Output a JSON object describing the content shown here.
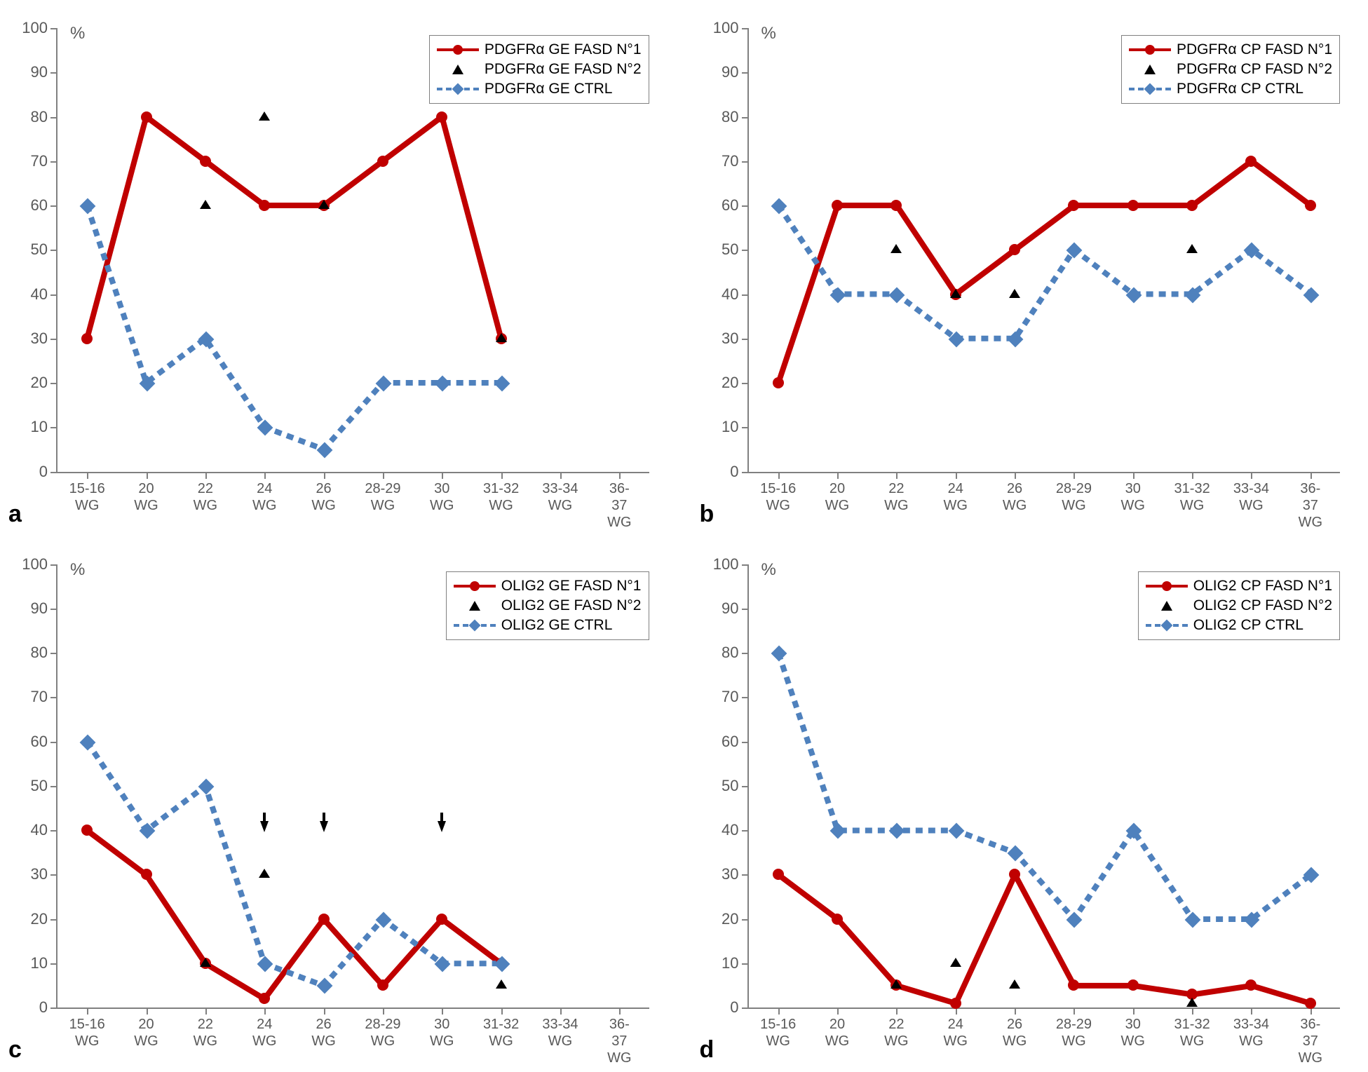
{
  "categories": [
    "15-16\nWG",
    "20\nWG",
    "22\nWG",
    "24\nWG",
    "26\nWG",
    "28-29\nWG",
    "30\nWG",
    "31-32\nWG",
    "33-34\nWG",
    "36-37\nWG"
  ],
  "ylim": [
    0,
    100
  ],
  "ytick_step": 10,
  "colors": {
    "red": "#c00000",
    "blue": "#4f81bd",
    "blue_marker": "#4f81bd",
    "black": "#000000",
    "axis": "#808080",
    "text": "#595959"
  },
  "line_width": 4,
  "dash_pattern": "10,8",
  "marker_radius": 8,
  "diamond_half": 7,
  "triangle_half": 8,
  "panels": {
    "a": {
      "label": "a",
      "legend": [
        {
          "type": "line-circle",
          "color": "red",
          "text": "PDGFRα GE FASD N°1"
        },
        {
          "type": "triangle",
          "color": "black",
          "text": "PDGFRα GE FASD N°2"
        },
        {
          "type": "dash-diamond",
          "color": "blue",
          "text": "PDGFRα GE CTRL"
        }
      ],
      "series": [
        {
          "name": "fasd1",
          "type": "line-circle",
          "color": "red",
          "data": [
            30,
            80,
            70,
            60,
            60,
            70,
            80,
            30,
            null,
            null
          ]
        },
        {
          "name": "ctrl",
          "type": "dash-diamond",
          "color": "blue",
          "data": [
            60,
            20,
            30,
            10,
            5,
            20,
            20,
            20,
            null,
            null
          ]
        },
        {
          "name": "fasd2",
          "type": "triangle",
          "color": "black",
          "data": [
            null,
            null,
            60,
            80,
            60,
            null,
            null,
            30,
            null,
            null
          ]
        }
      ]
    },
    "b": {
      "label": "b",
      "legend": [
        {
          "type": "line-circle",
          "color": "red",
          "text": "PDGFRα CP FASD N°1"
        },
        {
          "type": "triangle",
          "color": "black",
          "text": "PDGFRα CP FASD N°2"
        },
        {
          "type": "dash-diamond",
          "color": "blue",
          "text": "PDGFRα CP CTRL"
        }
      ],
      "series": [
        {
          "name": "fasd1",
          "type": "line-circle",
          "color": "red",
          "data": [
            20,
            60,
            60,
            40,
            50,
            60,
            60,
            60,
            70,
            60
          ]
        },
        {
          "name": "ctrl",
          "type": "dash-diamond",
          "color": "blue",
          "data": [
            60,
            40,
            40,
            30,
            30,
            50,
            40,
            40,
            50,
            40
          ]
        },
        {
          "name": "fasd2",
          "type": "triangle",
          "color": "black",
          "data": [
            null,
            null,
            50,
            40,
            40,
            null,
            null,
            50,
            null,
            null
          ]
        }
      ]
    },
    "c": {
      "label": "c",
      "legend": [
        {
          "type": "line-circle",
          "color": "red",
          "text": "OLIG2 GE FASD N°1"
        },
        {
          "type": "triangle",
          "color": "black",
          "text": "OLIG2 GE FASD N°2"
        },
        {
          "type": "dash-diamond",
          "color": "blue",
          "text": "OLIG2 GE CTRL"
        }
      ],
      "series": [
        {
          "name": "fasd1",
          "type": "line-circle",
          "color": "red",
          "data": [
            40,
            30,
            10,
            2,
            20,
            5,
            20,
            10,
            null,
            null
          ]
        },
        {
          "name": "ctrl",
          "type": "dash-diamond",
          "color": "blue",
          "data": [
            60,
            40,
            50,
            10,
            5,
            20,
            10,
            10,
            null,
            null
          ]
        },
        {
          "name": "fasd2",
          "type": "triangle",
          "color": "black",
          "data": [
            null,
            null,
            10,
            30,
            null,
            null,
            null,
            5,
            null,
            null
          ]
        }
      ],
      "arrows": [
        3,
        4,
        6
      ]
    },
    "d": {
      "label": "d",
      "legend": [
        {
          "type": "line-circle",
          "color": "red",
          "text": "OLIG2 CP FASD N°1"
        },
        {
          "type": "triangle",
          "color": "black",
          "text": "OLIG2 CP FASD N°2"
        },
        {
          "type": "dash-diamond",
          "color": "blue",
          "text": "OLIG2 CP CTRL"
        }
      ],
      "series": [
        {
          "name": "fasd1",
          "type": "line-circle",
          "color": "red",
          "data": [
            30,
            20,
            5,
            1,
            30,
            5,
            5,
            3,
            5,
            1
          ]
        },
        {
          "name": "ctrl",
          "type": "dash-diamond",
          "color": "blue",
          "data": [
            80,
            40,
            40,
            40,
            35,
            20,
            40,
            20,
            20,
            30
          ]
        },
        {
          "name": "fasd2",
          "type": "triangle",
          "color": "black",
          "data": [
            null,
            null,
            5,
            10,
            5,
            null,
            null,
            1,
            null,
            null
          ]
        }
      ]
    }
  }
}
